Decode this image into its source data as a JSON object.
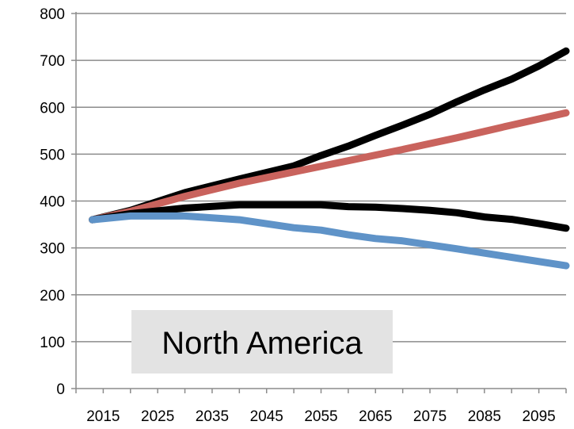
{
  "chart_data": {
    "type": "line",
    "title": "",
    "xlabel": "",
    "ylabel": "",
    "xlim": [
      2010,
      2100
    ],
    "ylim": [
      0,
      800
    ],
    "x_ticks": [
      2015,
      2025,
      2035,
      2045,
      2055,
      2065,
      2075,
      2085,
      2095
    ],
    "y_ticks": [
      0,
      100,
      200,
      300,
      400,
      500,
      600,
      700,
      800
    ],
    "grid": {
      "horizontal": true,
      "vertical": false
    },
    "legend": "none",
    "annotation": {
      "text": "North America",
      "position": "bottom-left"
    },
    "series": [
      {
        "color": "#000000",
        "x": [
          2013,
          2020,
          2030,
          2040,
          2050,
          2055,
          2060,
          2065,
          2070,
          2075,
          2080,
          2085,
          2090,
          2095,
          2100
        ],
        "values": [
          360,
          380,
          418,
          447,
          475,
          497,
          517,
          540,
          562,
          585,
          612,
          637,
          660,
          688,
          720
        ]
      },
      {
        "color": "#c9635d",
        "x": [
          2013,
          2020,
          2030,
          2040,
          2050,
          2060,
          2070,
          2080,
          2090,
          2100
        ],
        "values": [
          360,
          378,
          410,
          438,
          462,
          486,
          510,
          535,
          562,
          588
        ]
      },
      {
        "color": "#000000",
        "x": [
          2013,
          2020,
          2030,
          2040,
          2050,
          2055,
          2060,
          2065,
          2070,
          2075,
          2080,
          2085,
          2090,
          2095,
          2100
        ],
        "values": [
          360,
          373,
          385,
          392,
          392,
          392,
          388,
          387,
          384,
          380,
          375,
          366,
          361,
          352,
          342
        ]
      },
      {
        "color": "#5f93c8",
        "x": [
          2013,
          2020,
          2030,
          2040,
          2050,
          2055,
          2060,
          2065,
          2070,
          2080,
          2090,
          2100
        ],
        "values": [
          360,
          368,
          368,
          360,
          343,
          338,
          328,
          320,
          315,
          298,
          280,
          262
        ]
      }
    ]
  }
}
